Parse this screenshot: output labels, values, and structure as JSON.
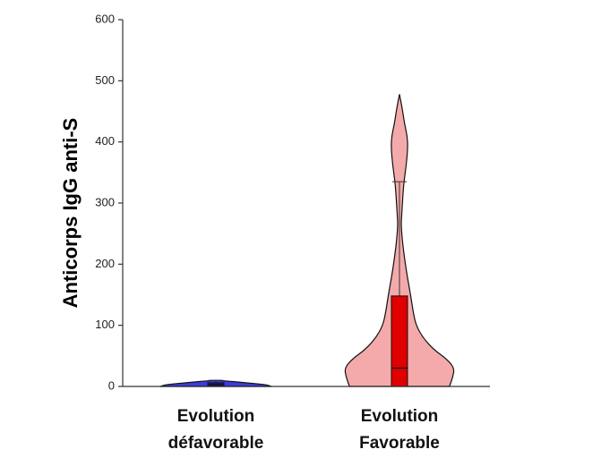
{
  "chart_data": {
    "type": "violin",
    "title": "",
    "xlabel": "",
    "ylabel": "Anticorps IgG anti-S",
    "ylim": [
      0,
      600
    ],
    "yticks": [
      0,
      100,
      200,
      300,
      400,
      500,
      600
    ],
    "grid": false,
    "legend": "none",
    "categories": [
      [
        "Evolution",
        "défavorable"
      ],
      [
        "Evolution",
        "Favorable"
      ]
    ],
    "groups": [
      {
        "min": 0,
        "q1": 1,
        "median": 3,
        "q3": 6,
        "max": 10,
        "fill_color": "#3B3BE0",
        "box_color": "#1A1AB0",
        "density": [
          [
            0,
            1.0
          ],
          [
            3,
            0.9
          ],
          [
            6,
            0.55
          ],
          [
            10,
            0.05
          ]
        ]
      },
      {
        "min": 0,
        "q1": 0,
        "median": 30,
        "q3": 148,
        "max": 478,
        "whisker_high": 335,
        "fill_color": "#F4AAAA",
        "box_color": "#E00000",
        "density": [
          [
            0,
            0.9
          ],
          [
            15,
            0.96
          ],
          [
            30,
            0.99
          ],
          [
            45,
            0.85
          ],
          [
            60,
            0.62
          ],
          [
            80,
            0.42
          ],
          [
            100,
            0.3
          ],
          [
            120,
            0.25
          ],
          [
            150,
            0.2
          ],
          [
            180,
            0.14
          ],
          [
            210,
            0.09
          ],
          [
            240,
            0.05
          ],
          [
            265,
            0.03
          ],
          [
            280,
            0.04
          ],
          [
            310,
            0.06
          ],
          [
            335,
            0.08
          ],
          [
            360,
            0.12
          ],
          [
            390,
            0.15
          ],
          [
            410,
            0.14
          ],
          [
            430,
            0.09
          ],
          [
            455,
            0.05
          ],
          [
            478,
            0.0
          ]
        ]
      }
    ]
  }
}
